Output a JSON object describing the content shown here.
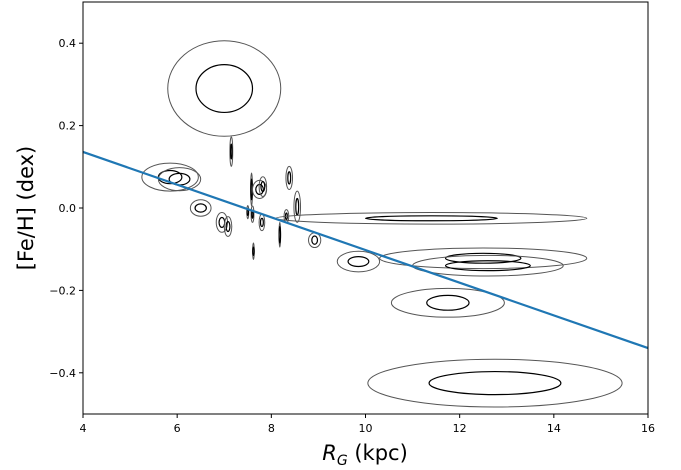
{
  "chart_data": {
    "type": "scatter",
    "title": "",
    "xlabel": "R_G (kpc)",
    "ylabel": "[Fe/H] (dex)",
    "xlim": [
      4,
      16
    ],
    "ylim": [
      -0.5,
      0.5
    ],
    "xticks": [
      4,
      6,
      8,
      10,
      12,
      14,
      16
    ],
    "yticks": [
      -0.4,
      -0.2,
      0.0,
      0.2,
      0.4
    ],
    "xtick_labels": [
      "4",
      "6",
      "8",
      "10",
      "12",
      "14",
      "16"
    ],
    "ytick_labels": [
      "−0.4",
      "−0.2",
      "0.0",
      "0.2",
      "0.4"
    ],
    "grid": false,
    "colors": {
      "fit_line": "#1f77b4",
      "inner_ellipse": "#000000",
      "outer_ellipse": "#555555"
    },
    "fit_line": {
      "x": [
        4,
        16
      ],
      "y": [
        0.136,
        -0.34
      ]
    },
    "clusters": [
      {
        "x": 7.0,
        "y": 0.29,
        "ex1": 0.6,
        "ey1": 0.058,
        "ex2": 1.2,
        "ey2": 0.116
      },
      {
        "x": 7.15,
        "y": 0.137,
        "ex1": 0.015,
        "ey1": 0.018,
        "ex2": 0.03,
        "ey2": 0.036
      },
      {
        "x": 5.85,
        "y": 0.075,
        "ex1": 0.25,
        "ey1": 0.016,
        "ex2": 0.6,
        "ey2": 0.034
      },
      {
        "x": 6.05,
        "y": 0.07,
        "ex1": 0.22,
        "ey1": 0.014,
        "ex2": 0.45,
        "ey2": 0.028
      },
      {
        "x": 6.5,
        "y": 0.0,
        "ex1": 0.12,
        "ey1": 0.01,
        "ex2": 0.22,
        "ey2": 0.02
      },
      {
        "x": 6.95,
        "y": -0.035,
        "ex1": 0.06,
        "ey1": 0.012,
        "ex2": 0.12,
        "ey2": 0.024
      },
      {
        "x": 7.08,
        "y": -0.045,
        "ex1": 0.04,
        "ey1": 0.012,
        "ex2": 0.08,
        "ey2": 0.024
      },
      {
        "x": 7.5,
        "y": -0.01,
        "ex1": 0.01,
        "ey1": 0.008,
        "ex2": 0.02,
        "ey2": 0.016
      },
      {
        "x": 7.58,
        "y": 0.045,
        "ex1": 0.01,
        "ey1": 0.025,
        "ex2": 0.02,
        "ey2": 0.04
      },
      {
        "x": 7.6,
        "y": -0.015,
        "ex1": 0.01,
        "ey1": 0.01,
        "ex2": 0.03,
        "ey2": 0.02
      },
      {
        "x": 7.62,
        "y": -0.105,
        "ex1": 0.01,
        "ey1": 0.01,
        "ex2": 0.015,
        "ey2": 0.02
      },
      {
        "x": 7.75,
        "y": 0.045,
        "ex1": 0.08,
        "ey1": 0.012,
        "ex2": 0.15,
        "ey2": 0.022
      },
      {
        "x": 7.82,
        "y": 0.052,
        "ex1": 0.04,
        "ey1": 0.012,
        "ex2": 0.08,
        "ey2": 0.024
      },
      {
        "x": 7.8,
        "y": -0.035,
        "ex1": 0.03,
        "ey1": 0.01,
        "ex2": 0.06,
        "ey2": 0.02
      },
      {
        "x": 8.18,
        "y": -0.065,
        "ex1": 0.008,
        "ey1": 0.02,
        "ex2": 0.015,
        "ey2": 0.03
      },
      {
        "x": 8.32,
        "y": -0.02,
        "ex1": 0.02,
        "ey1": 0.008,
        "ex2": 0.05,
        "ey2": 0.016
      },
      {
        "x": 8.38,
        "y": 0.073,
        "ex1": 0.03,
        "ey1": 0.015,
        "ex2": 0.07,
        "ey2": 0.028
      },
      {
        "x": 8.55,
        "y": 0.003,
        "ex1": 0.03,
        "ey1": 0.02,
        "ex2": 0.07,
        "ey2": 0.038
      },
      {
        "x": 8.92,
        "y": -0.078,
        "ex1": 0.06,
        "ey1": 0.01,
        "ex2": 0.13,
        "ey2": 0.018
      },
      {
        "x": 11.4,
        "y": -0.025,
        "ex1": 1.4,
        "ey1": 0.006,
        "ex2": 3.3,
        "ey2": 0.014
      },
      {
        "x": 9.85,
        "y": -0.13,
        "ex1": 0.22,
        "ey1": 0.012,
        "ex2": 0.45,
        "ey2": 0.025
      },
      {
        "x": 12.5,
        "y": -0.122,
        "ex1": 0.8,
        "ey1": 0.012,
        "ex2": 2.2,
        "ey2": 0.025
      },
      {
        "x": 12.6,
        "y": -0.14,
        "ex1": 0.9,
        "ey1": 0.012,
        "ex2": 1.6,
        "ey2": 0.025
      },
      {
        "x": 11.75,
        "y": -0.23,
        "ex1": 0.45,
        "ey1": 0.018,
        "ex2": 1.2,
        "ey2": 0.035
      },
      {
        "x": 12.75,
        "y": -0.425,
        "ex1": 1.4,
        "ey1": 0.028,
        "ex2": 2.7,
        "ey2": 0.058
      }
    ]
  }
}
